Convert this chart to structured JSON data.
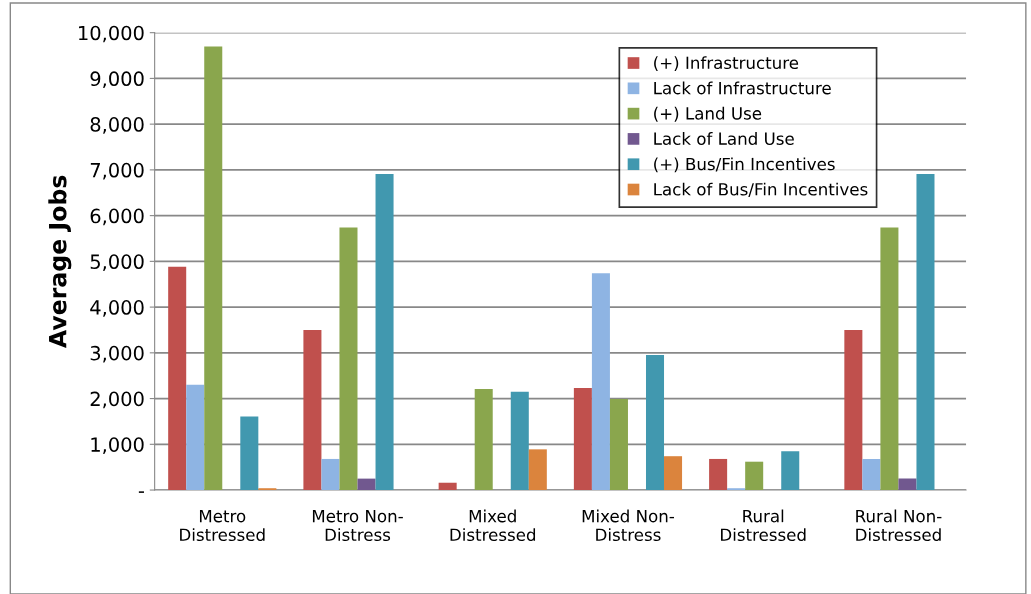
{
  "chart_data": {
    "type": "bar",
    "ylabel": "Average Jobs",
    "categories": [
      "Metro\nDistressed",
      "Metro Non-\nDistress",
      "Mixed\nDistressed",
      "Mixed Non-\nDistress",
      "Rural\nDistressed",
      "Rural Non-\nDistressed"
    ],
    "series": [
      {
        "name": "(+) Infrastructure",
        "color": "#c0504d",
        "values": [
          4880,
          3500,
          160,
          2230,
          680,
          3500
        ]
      },
      {
        "name": "Lack of Infrastructure",
        "color": "#8eb4e3",
        "values": [
          2300,
          680,
          null,
          4740,
          40,
          680
        ]
      },
      {
        "name": "(+) Land Use",
        "color": "#8aa64d",
        "values": [
          9700,
          5740,
          2210,
          1990,
          620,
          5740
        ]
      },
      {
        "name": "Lack of Land Use",
        "color": "#71588f",
        "values": [
          null,
          250,
          null,
          null,
          null,
          250
        ]
      },
      {
        "name": "(+) Bus/Fin Incentives",
        "color": "#4198af",
        "values": [
          1610,
          6910,
          2150,
          2950,
          850,
          6910
        ]
      },
      {
        "name": "Lack of Bus/Fin Incentives",
        "color": "#db843d",
        "values": [
          40,
          null,
          890,
          740,
          null,
          null
        ]
      }
    ],
    "ylim": [
      0,
      10000
    ],
    "yticks": [
      {
        "value": 0,
        "label": "-"
      },
      {
        "value": 1000,
        "label": "1,000"
      },
      {
        "value": 2000,
        "label": "2,000"
      },
      {
        "value": 3000,
        "label": "3,000"
      },
      {
        "value": 4000,
        "label": "4,000"
      },
      {
        "value": 5000,
        "label": "5,000"
      },
      {
        "value": 6000,
        "label": "6,000"
      },
      {
        "value": 7000,
        "label": "7,000"
      },
      {
        "value": 8000,
        "label": "8,000"
      },
      {
        "value": 9000,
        "label": "9,000"
      },
      {
        "value": 10000,
        "label": "10,000"
      }
    ],
    "grid": "y",
    "legend": "top right"
  }
}
